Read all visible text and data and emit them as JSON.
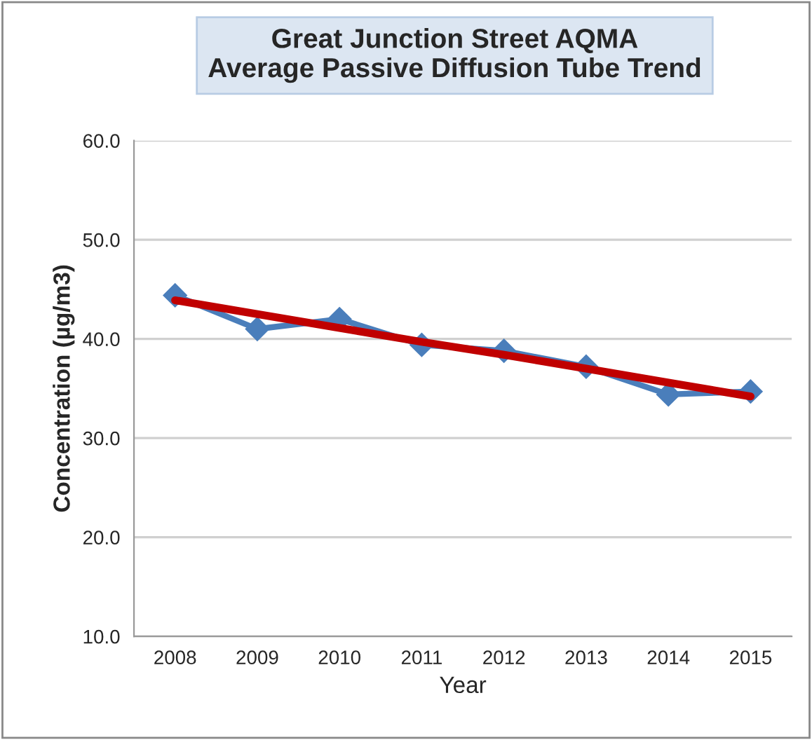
{
  "chart_data": {
    "type": "line",
    "title": "Great Junction Street AQMA\nAverage Passive Diffusion Tube Trend",
    "xlabel": "Year",
    "ylabel": "Concentration (µg/m3)",
    "categories": [
      "2008",
      "2009",
      "2010",
      "2011",
      "2012",
      "2013",
      "2014",
      "2015"
    ],
    "series": [
      {
        "color": "#4a7ebb",
        "marker": "diamond",
        "values": [
          44.4,
          41.0,
          42.0,
          39.4,
          38.8,
          37.2,
          34.4,
          34.7
        ]
      },
      {
        "color": "#c00000",
        "marker": "none",
        "values": [
          43.9,
          42.5,
          41.1,
          39.7,
          38.4,
          37.0,
          35.6,
          34.2
        ]
      }
    ],
    "ylim": [
      10,
      60
    ],
    "yticks": [
      {
        "value": 10,
        "label": "10.0"
      },
      {
        "value": 20,
        "label": "20.0"
      },
      {
        "value": 30,
        "label": "30.0"
      },
      {
        "value": 40,
        "label": "40.0"
      },
      {
        "value": 50,
        "label": "50.0"
      },
      {
        "value": 60,
        "label": "60.0"
      }
    ],
    "grid": "y",
    "legend": false
  }
}
